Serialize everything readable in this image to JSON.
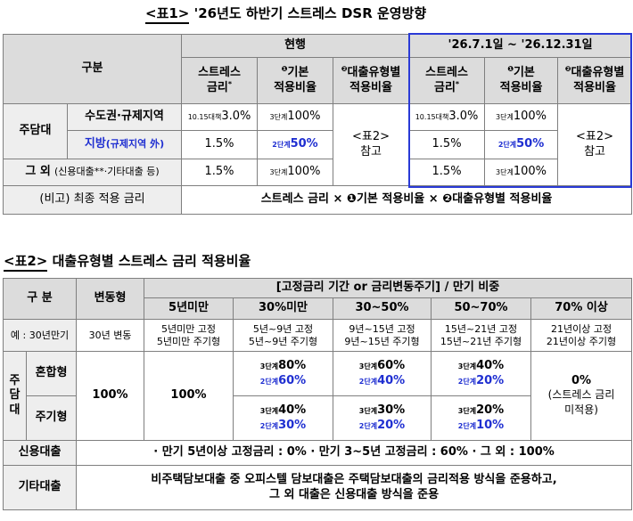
{
  "table1": {
    "title_prefix": "<표1>",
    "title_rest": "'26년도 하반기 스트레스 DSR 운영방향",
    "col_category": "구분",
    "group_current": "현행",
    "group_new": "'26.7.1일 ~ '26.12.31일",
    "h_stress_1": "스트레스",
    "h_stress_2": "금리",
    "h_stress_mark": "*",
    "h_base_mark": "❶",
    "h_base_1": "기본",
    "h_base_2": "적용비율",
    "h_type_mark": "❷",
    "h_type_1": "대출유형별",
    "h_type_2": "적용비율",
    "row_mortgage": "주담대",
    "row_capital": "수도권·규제지역",
    "row_local": "지방",
    "row_local_paren": "(규제지역 外)",
    "row_other": "그 외",
    "row_other_paren": "(신용대출**·기타대출 등)",
    "cap_stress_pre": "10.15대책",
    "cap_stress_val": "3.0%",
    "cap_base_pre": "3단계",
    "cap_base_val": "100%",
    "loc_stress_val": "1.5%",
    "loc_base_pre": "2단계",
    "loc_base_val": "50%",
    "oth_stress_val": "1.5%",
    "oth_base_pre": "3단계",
    "oth_base_val": "100%",
    "ref_1": "<표2>",
    "ref_2": "참고",
    "note_label": "(비고) 최종 적용 금리",
    "note_formula": "스트레스 금리 × ❶기본 적용비율 × ❷대출유형별 적용비율"
  },
  "table2": {
    "title_prefix": "<표2>",
    "title_rest": "대출유형별 스트레스 금리 적용비율",
    "col_category": "구 분",
    "col_variable": "변동형",
    "group_fixed": "[고정금리 기간 or 금리변동주기] / 만기 비중",
    "h_5y": "5년미만",
    "h_30": "30%미만",
    "h_30_50": "30~50%",
    "h_50_70": "50~70%",
    "h_70": "70% 이상",
    "ex_label": "예 : 30년만기",
    "ex_variable": "30년 변동",
    "ex_5y_1": "5년미만 고정",
    "ex_5y_2": "5년미만 주기형",
    "ex_30_1": "5년~9년 고정",
    "ex_30_2": "5년~9년 주기형",
    "ex_30_50_1": "9년~15년 고정",
    "ex_30_50_2": "9년~15년 주기형",
    "ex_50_70_1": "15년~21년 고정",
    "ex_50_70_2": "15년~21년 주기형",
    "ex_70_1": "21년이상 고정",
    "ex_70_2": "21년이상 주기형",
    "row_mortgage_v": [
      "주",
      "담",
      "대"
    ],
    "row_mixed": "혼합형",
    "row_periodic": "주기형",
    "var_val": "100%",
    "y5_val": "100%",
    "stage3": "3단계",
    "stage2": "2단계",
    "mixed_30_s3": "80%",
    "mixed_30_s2": "60%",
    "mixed_3050_s3": "60%",
    "mixed_3050_s2": "40%",
    "mixed_5070_s3": "40%",
    "mixed_5070_s2": "20%",
    "per_30_s3": "40%",
    "per_30_s2": "30%",
    "per_3050_s3": "30%",
    "per_3050_s2": "20%",
    "per_5070_s3": "20%",
    "per_5070_s2": "10%",
    "over70_val": "0%",
    "over70_note_1": "(스트레스 금리",
    "over70_note_2": "미적용)",
    "row_credit": "신용대출",
    "credit_text": "· 만기 5년이상 고정금리 : 0%   · 만기 3~5년 고정금리 : 60%   · 그 외 : 100%",
    "row_etc": "기타대출",
    "etc_text_1": "비주택담보대출 중 오피스텔 담보대출은 주택담보대출의 금리적용 방식을 준용하고,",
    "etc_text_2": "그 외 대출은 신용대출 방식을 준용"
  },
  "colors": {
    "header_bg": "#dcdcdc",
    "highlight_border": "#2a3ad6",
    "blue_text": "#1f2fd1"
  }
}
